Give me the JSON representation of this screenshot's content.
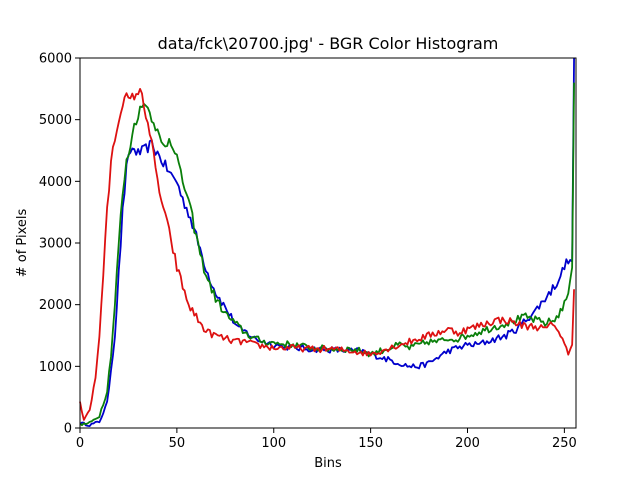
{
  "chart_data": {
    "type": "line",
    "title": "data/fck\\20700.jpg' - BGR Color Histogram",
    "xlabel": "Bins",
    "ylabel": "# of Pixels",
    "xlim": [
      0,
      256
    ],
    "ylim": [
      0,
      6000
    ],
    "xticks": [
      0,
      50,
      100,
      150,
      200,
      250
    ],
    "yticks": [
      0,
      1000,
      2000,
      3000,
      4000,
      5000,
      6000
    ],
    "grid": false,
    "legend": "none",
    "series": [
      {
        "name": "b",
        "color": "#0000cc",
        "x": [
          0,
          5,
          10,
          14,
          18,
          20,
          22,
          24,
          26,
          28,
          30,
          33,
          35,
          37,
          40,
          42,
          45,
          47,
          50,
          53,
          56,
          60,
          63,
          66,
          70,
          74,
          78,
          82,
          86,
          90,
          95,
          100,
          110,
          120,
          130,
          140,
          145,
          150,
          155,
          160,
          165,
          170,
          175,
          180,
          185,
          190,
          195,
          200,
          205,
          210,
          215,
          220,
          225,
          230,
          235,
          240,
          245,
          250,
          252,
          254,
          255
        ],
        "values": [
          80,
          50,
          100,
          400,
          1500,
          2500,
          3500,
          4200,
          4500,
          4520,
          4450,
          4500,
          4550,
          4600,
          4450,
          4350,
          4200,
          4100,
          4000,
          3700,
          3500,
          3100,
          2800,
          2500,
          2200,
          2000,
          1800,
          1600,
          1550,
          1450,
          1400,
          1350,
          1300,
          1280,
          1270,
          1250,
          1250,
          1200,
          1150,
          1100,
          1050,
          1000,
          1000,
          1050,
          1150,
          1250,
          1300,
          1350,
          1350,
          1400,
          1450,
          1500,
          1600,
          1750,
          1900,
          2100,
          2300,
          2600,
          2750,
          2700,
          6000
        ]
      },
      {
        "name": "g",
        "color": "#0a7f0a",
        "x": [
          0,
          5,
          10,
          14,
          16,
          18,
          20,
          22,
          24,
          26,
          28,
          30,
          32,
          34,
          36,
          38,
          40,
          42,
          44,
          46,
          48,
          50,
          52,
          55,
          58,
          60,
          63,
          66,
          70,
          75,
          80,
          85,
          90,
          95,
          100,
          110,
          120,
          130,
          140,
          145,
          150,
          155,
          160,
          165,
          170,
          175,
          180,
          185,
          190,
          195,
          200,
          205,
          210,
          215,
          220,
          225,
          230,
          235,
          240,
          245,
          250,
          252,
          254,
          255
        ],
        "values": [
          50,
          80,
          200,
          600,
          1200,
          2000,
          3000,
          3800,
          4300,
          4600,
          4900,
          5100,
          5200,
          5300,
          5100,
          5000,
          4800,
          4600,
          4550,
          4700,
          4600,
          4400,
          4100,
          3800,
          3400,
          3100,
          2700,
          2400,
          2100,
          1850,
          1700,
          1550,
          1450,
          1400,
          1380,
          1350,
          1300,
          1280,
          1280,
          1250,
          1200,
          1250,
          1300,
          1350,
          1300,
          1350,
          1400,
          1400,
          1450,
          1450,
          1500,
          1550,
          1600,
          1650,
          1700,
          1750,
          1800,
          1750,
          1700,
          1750,
          2000,
          2200,
          2600,
          5600
        ]
      },
      {
        "name": "r",
        "color": "#dd1111",
        "x": [
          0,
          2,
          5,
          8,
          10,
          12,
          14,
          16,
          18,
          20,
          22,
          24,
          26,
          28,
          30,
          32,
          34,
          36,
          38,
          40,
          42,
          45,
          48,
          50,
          53,
          56,
          60,
          63,
          66,
          70,
          75,
          80,
          85,
          90,
          100,
          110,
          120,
          130,
          140,
          150,
          155,
          160,
          165,
          170,
          175,
          180,
          185,
          190,
          195,
          200,
          205,
          210,
          215,
          220,
          225,
          230,
          235,
          240,
          245,
          248,
          250,
          252,
          254,
          255
        ],
        "values": [
          400,
          150,
          300,
          800,
          1500,
          2500,
          3500,
          4300,
          4700,
          5000,
          5300,
          5350,
          5300,
          5400,
          5450,
          5400,
          5100,
          4800,
          4400,
          4000,
          3700,
          3300,
          2900,
          2600,
          2300,
          2000,
          1800,
          1650,
          1550,
          1500,
          1450,
          1400,
          1400,
          1350,
          1300,
          1300,
          1280,
          1280,
          1250,
          1200,
          1250,
          1300,
          1350,
          1400,
          1450,
          1500,
          1550,
          1600,
          1550,
          1600,
          1650,
          1700,
          1750,
          1750,
          1700,
          1650,
          1650,
          1600,
          1700,
          1500,
          1350,
          1200,
          1350,
          2250
        ]
      }
    ]
  }
}
